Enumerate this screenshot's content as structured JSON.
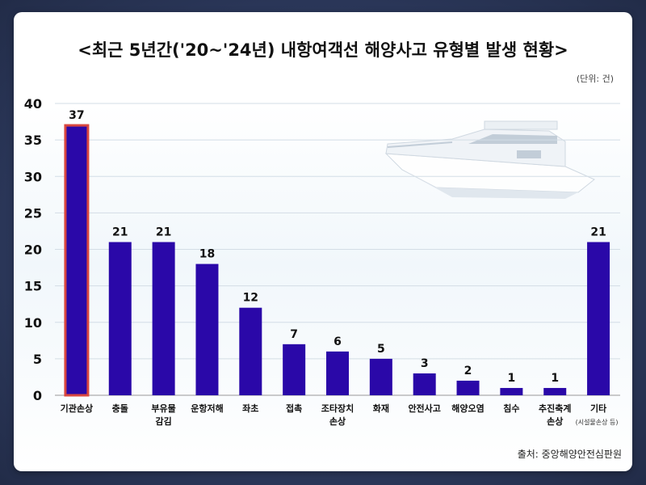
{
  "chart_data": {
    "type": "bar",
    "title": "<최근 5년간('20~'24년) 내항여객선 해양사고 유형별 발생 현황>",
    "unit_label": "(단위: 건)",
    "source": "출처: 중앙해양안전심판원",
    "categories": [
      [
        "기관손상"
      ],
      [
        "충돌"
      ],
      [
        "부유물",
        "감김"
      ],
      [
        "운항저해"
      ],
      [
        "좌초"
      ],
      [
        "접촉"
      ],
      [
        "조타장치",
        "손상"
      ],
      [
        "화재"
      ],
      [
        "안전사고"
      ],
      [
        "해양오염"
      ],
      [
        "침수"
      ],
      [
        "추진축계",
        "손상"
      ],
      [
        "기타"
      ]
    ],
    "category_note": "(시설물손상 등)",
    "values": [
      37,
      21,
      21,
      18,
      12,
      7,
      6,
      5,
      3,
      2,
      1,
      1,
      21
    ],
    "highlight_index": 0,
    "ylim": [
      0,
      40
    ],
    "yticks": [
      0,
      5,
      10,
      15,
      20,
      25,
      30,
      35,
      40
    ],
    "grid": true,
    "colors": {
      "bar": "#2a08a8",
      "highlight_border": "#d9473f",
      "grid": "#d3dde6"
    }
  }
}
